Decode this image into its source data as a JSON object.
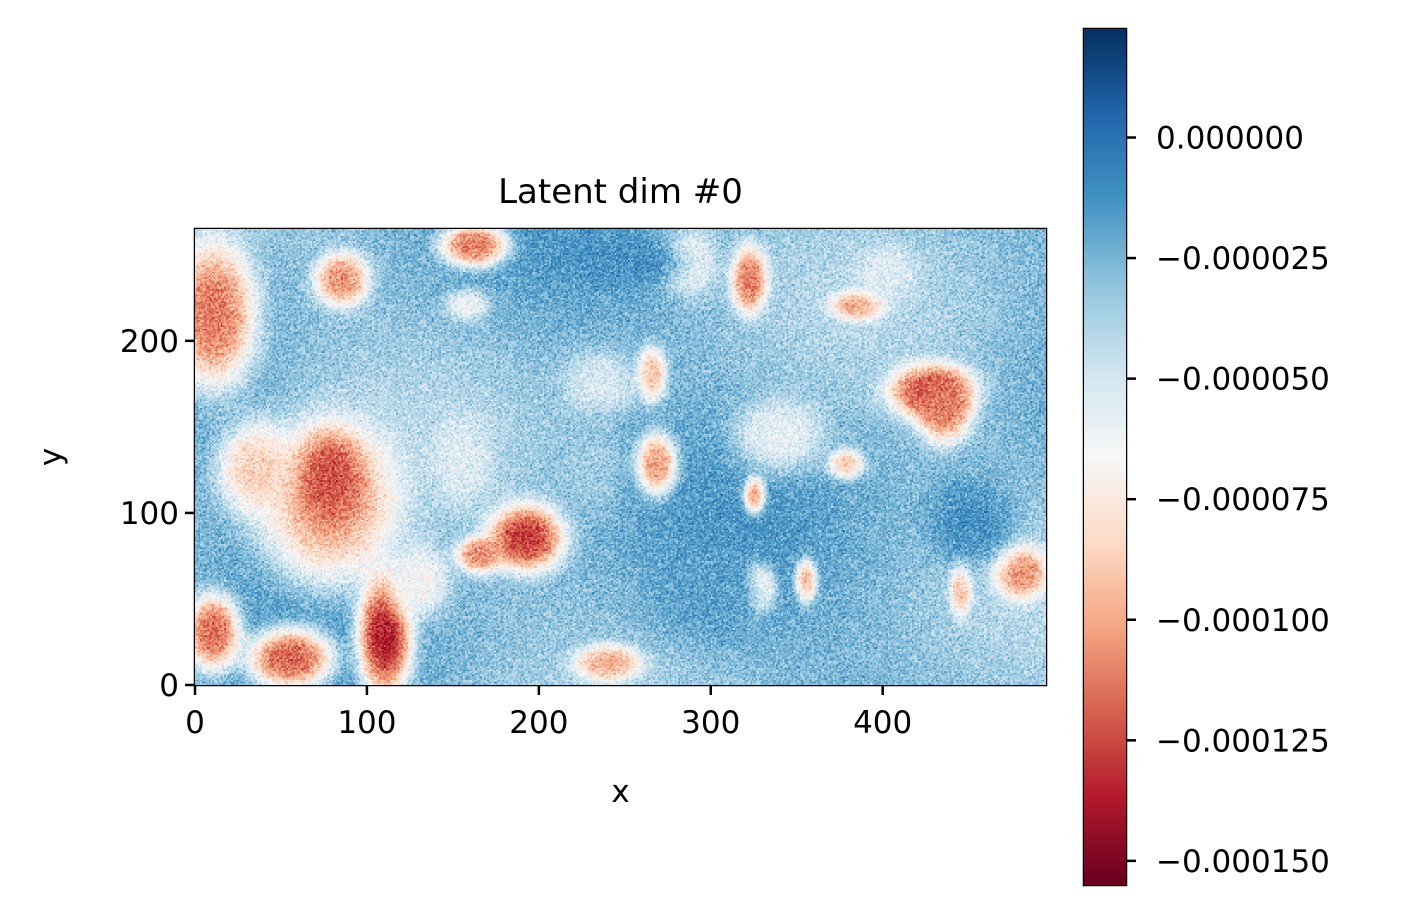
{
  "chart_data": {
    "type": "heatmap",
    "title": "Latent dim #0",
    "xlabel": "x",
    "ylabel": "y",
    "xlim": [
      0,
      495
    ],
    "ylim": [
      0,
      265
    ],
    "x_ticks": [
      0,
      100,
      200,
      300,
      400
    ],
    "y_ticks": [
      0,
      100,
      200
    ],
    "x_tick_labels": [
      "0",
      "100",
      "200",
      "300",
      "400"
    ],
    "y_tick_labels": [
      "0",
      "100",
      "200"
    ],
    "colormap": "RdBu",
    "colorbar": {
      "vmin": -0.000155,
      "vmax": 2.25e-05,
      "ticks": [
        0.0,
        -2.5e-05,
        -5e-05,
        -7.5e-05,
        -0.0001,
        -0.000125,
        -0.00015
      ],
      "tick_labels": [
        "0.000000",
        "−0.000025",
        "−0.000050",
        "−0.000075",
        "−0.000100",
        "−0.000125",
        "−0.000150"
      ]
    },
    "background_value": -2.8e-05,
    "noise_amplitude": 1.6e-05,
    "blobs": [
      {
        "cx": 10,
        "cy": 215,
        "rx": 28,
        "ry": 48,
        "value": -0.000112
      },
      {
        "cx": 78,
        "cy": 105,
        "rx": 45,
        "ry": 52,
        "value": -9.8e-05
      },
      {
        "cx": 78,
        "cy": 120,
        "rx": 22,
        "ry": 30,
        "value": -0.000122
      },
      {
        "cx": 35,
        "cy": 125,
        "rx": 25,
        "ry": 30,
        "value": -8.5e-05
      },
      {
        "cx": 110,
        "cy": 28,
        "rx": 18,
        "ry": 40,
        "value": -0.000135
      },
      {
        "cx": 55,
        "cy": 15,
        "rx": 28,
        "ry": 20,
        "value": -0.000118
      },
      {
        "cx": 10,
        "cy": 30,
        "rx": 18,
        "ry": 25,
        "value": -0.000115
      },
      {
        "cx": 162,
        "cy": 255,
        "rx": 22,
        "ry": 14,
        "value": -0.000112
      },
      {
        "cx": 85,
        "cy": 235,
        "rx": 18,
        "ry": 18,
        "value": -0.000105
      },
      {
        "cx": 192,
        "cy": 85,
        "rx": 25,
        "ry": 22,
        "value": -0.000128
      },
      {
        "cx": 165,
        "cy": 75,
        "rx": 15,
        "ry": 12,
        "value": -0.000108
      },
      {
        "cx": 268,
        "cy": 128,
        "rx": 13,
        "ry": 20,
        "value": -0.000102
      },
      {
        "cx": 265,
        "cy": 180,
        "rx": 10,
        "ry": 18,
        "value": -9.2e-05
      },
      {
        "cx": 322,
        "cy": 235,
        "rx": 12,
        "ry": 22,
        "value": -0.000112
      },
      {
        "cx": 325,
        "cy": 110,
        "rx": 7,
        "ry": 12,
        "value": -9.5e-05
      },
      {
        "cx": 328,
        "cy": 55,
        "rx": 10,
        "ry": 15,
        "value": -0.000102
      },
      {
        "cx": 355,
        "cy": 60,
        "rx": 7,
        "ry": 14,
        "value": -9.2e-05
      },
      {
        "cx": 385,
        "cy": 220,
        "rx": 18,
        "ry": 10,
        "value": -9.8e-05
      },
      {
        "cx": 428,
        "cy": 170,
        "rx": 28,
        "ry": 18,
        "value": -0.000126
      },
      {
        "cx": 435,
        "cy": 160,
        "rx": 18,
        "ry": 22,
        "value": -0.000112
      },
      {
        "cx": 480,
        "cy": 65,
        "rx": 18,
        "ry": 18,
        "value": -0.000106
      },
      {
        "cx": 445,
        "cy": 55,
        "rx": 7,
        "ry": 18,
        "value": -9.2e-05
      },
      {
        "cx": 378,
        "cy": 128,
        "rx": 12,
        "ry": 10,
        "value": -8.5e-05
      },
      {
        "cx": 240,
        "cy": 12,
        "rx": 22,
        "ry": 12,
        "value": -9.8e-05
      },
      {
        "cx": 158,
        "cy": 220,
        "rx": 14,
        "ry": 10,
        "value": -6.2e-05
      },
      {
        "cx": 235,
        "cy": 175,
        "rx": 25,
        "ry": 22,
        "value": -5.2e-05
      },
      {
        "cx": 340,
        "cy": 145,
        "rx": 30,
        "ry": 25,
        "value": -5.8e-05
      },
      {
        "cx": 288,
        "cy": 245,
        "rx": 18,
        "ry": 22,
        "value": -6.2e-05
      },
      {
        "cx": 402,
        "cy": 240,
        "rx": 20,
        "ry": 18,
        "value": -5.5e-05
      },
      {
        "cx": 155,
        "cy": 130,
        "rx": 20,
        "ry": 30,
        "value": -5.5e-05
      },
      {
        "cx": 250,
        "cy": 245,
        "rx": 40,
        "ry": 15,
        "value": -1.2e-05
      },
      {
        "cx": 450,
        "cy": 95,
        "rx": 30,
        "ry": 30,
        "value": -1.2e-05
      },
      {
        "cx": 300,
        "cy": 50,
        "rx": 40,
        "ry": 30,
        "value": -1.8e-05
      },
      {
        "cx": 230,
        "cy": 125,
        "rx": 20,
        "ry": 30,
        "value": -3.5e-05
      },
      {
        "cx": 130,
        "cy": 60,
        "rx": 20,
        "ry": 25,
        "value": -6.5e-05
      }
    ]
  }
}
